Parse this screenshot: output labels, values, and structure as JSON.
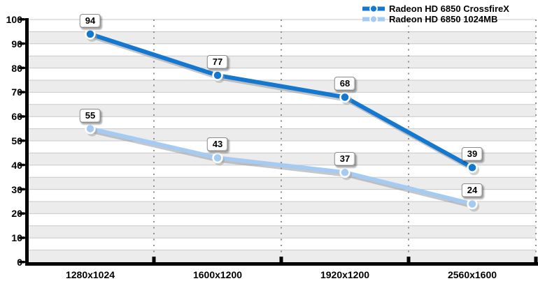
{
  "chart_data": {
    "type": "line",
    "title": "",
    "xlabel": "",
    "ylabel": "",
    "categories": [
      "1280x1024",
      "1600x1200",
      "1920x1200",
      "2560x1600"
    ],
    "series": [
      {
        "name": "Radeon HD 6850 CrossfireX",
        "color": "#1478d0",
        "values": [
          94,
          77,
          68,
          39
        ]
      },
      {
        "name": "Radeon HD 6850 1024MB",
        "color": "#a6cbf2",
        "values": [
          55,
          43,
          37,
          24
        ]
      }
    ],
    "y_ticks": [
      0,
      10,
      20,
      30,
      40,
      50,
      60,
      70,
      80,
      90,
      100
    ],
    "ylim": [
      0,
      100
    ],
    "y_minor_step": 5,
    "grid": true,
    "banded_background": true,
    "data_labels": true,
    "legend_position": "top-right",
    "colors": {
      "band_gray": "#ececec",
      "gridline": "#c8c8c8",
      "separator_dots": "#8f8f8f",
      "axis": "#000000",
      "line_shadow": "#999999"
    }
  }
}
